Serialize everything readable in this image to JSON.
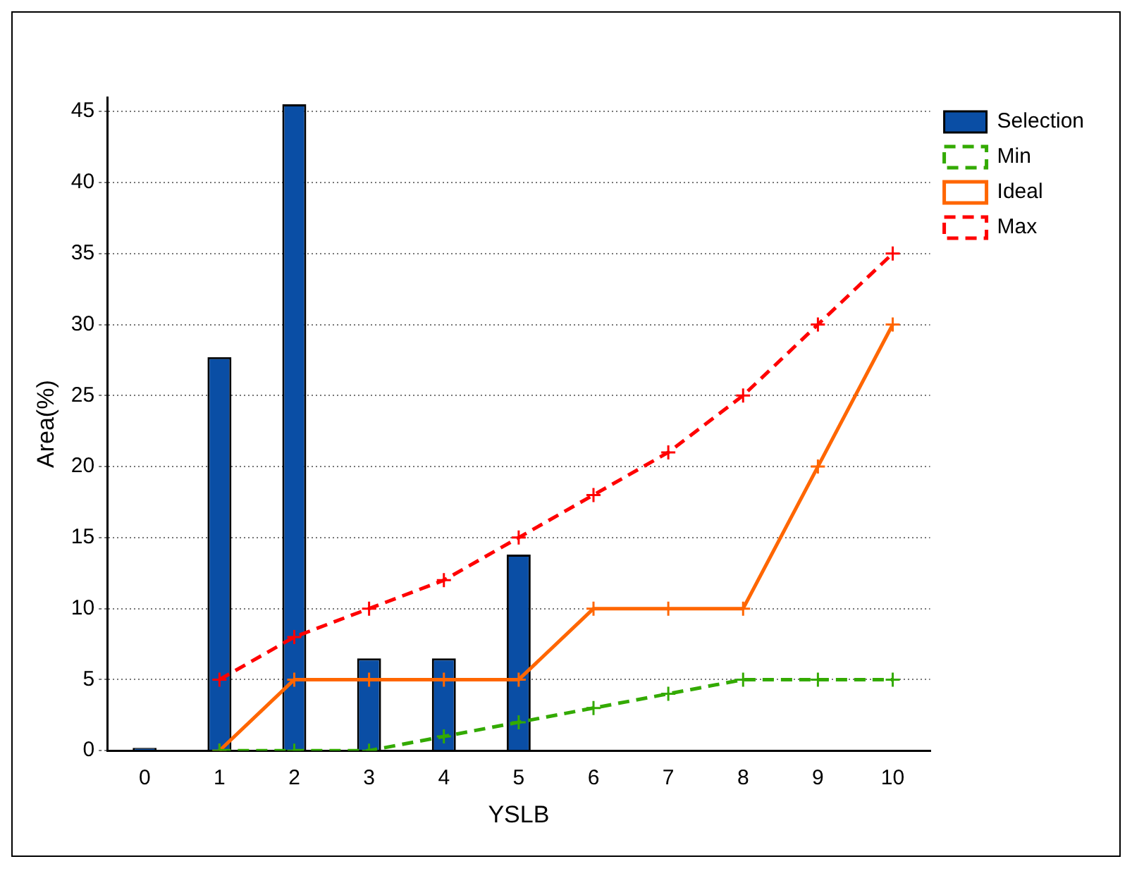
{
  "chart_data": {
    "type": "bar",
    "xlabel": "YSLB",
    "ylabel": "Area(%)",
    "categories": [
      "0",
      "1",
      "2",
      "3",
      "4",
      "5",
      "6",
      "7",
      "8",
      "9",
      "10"
    ],
    "series": [
      {
        "name": "Selection",
        "color": "#0a4ea5",
        "values": [
          0.2,
          27.7,
          45.5,
          6.5,
          6.5,
          13.8,
          null,
          null,
          null,
          null,
          null
        ]
      },
      {
        "name": "Min",
        "type": "line",
        "color": "#33aa00",
        "line_style": "dashed",
        "values": [
          null,
          0,
          0,
          0,
          1,
          2,
          3,
          4,
          5,
          5,
          5
        ]
      },
      {
        "name": "Ideal",
        "type": "line",
        "color": "#ff6600",
        "line_style": "solid",
        "values": [
          null,
          0,
          5,
          5,
          5,
          5,
          10,
          10,
          10,
          20,
          30
        ]
      },
      {
        "name": "Max",
        "type": "line",
        "color": "#ff0000",
        "line_style": "dashed",
        "values": [
          null,
          5,
          8,
          10,
          12,
          15,
          18,
          21,
          25,
          30,
          35
        ]
      }
    ],
    "ylim": [
      0,
      46
    ],
    "yticks": [
      0,
      5,
      10,
      15,
      20,
      25,
      30,
      35,
      40,
      45
    ],
    "grid": "y",
    "legend": "top right",
    "marker": "cross"
  }
}
